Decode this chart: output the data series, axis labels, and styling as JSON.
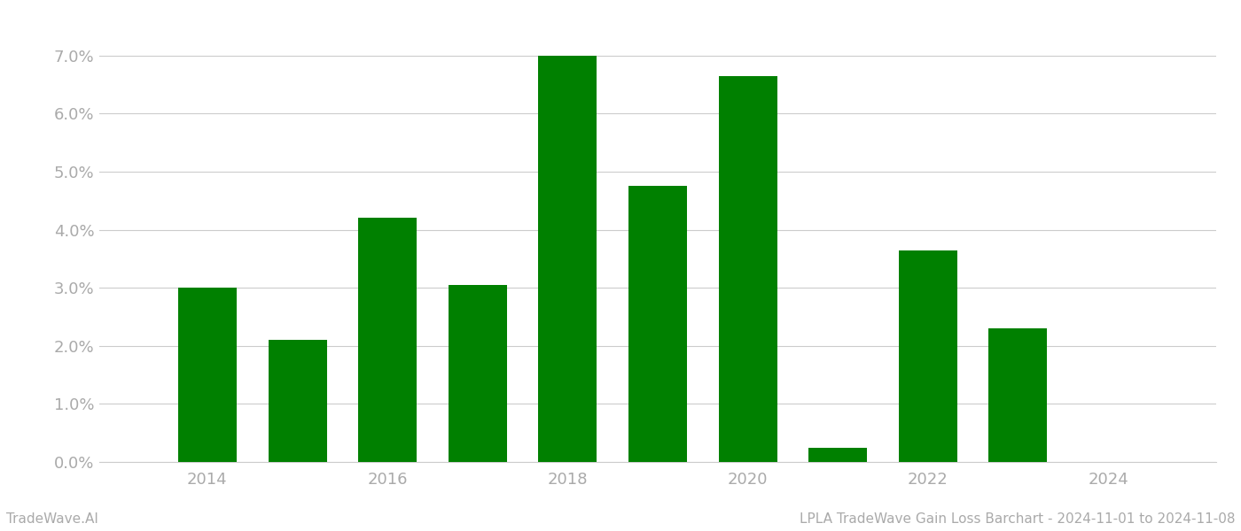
{
  "years": [
    2014,
    2015,
    2016,
    2017,
    2018,
    2019,
    2020,
    2021,
    2022,
    2023
  ],
  "values": [
    0.03,
    0.021,
    0.042,
    0.0305,
    0.07,
    0.0475,
    0.0665,
    0.0025,
    0.0365,
    0.023
  ],
  "bar_color": "#008000",
  "background_color": "#ffffff",
  "ylim": [
    0,
    0.075
  ],
  "yticks": [
    0.0,
    0.01,
    0.02,
    0.03,
    0.04,
    0.05,
    0.06,
    0.07
  ],
  "xticks": [
    2014,
    2016,
    2018,
    2020,
    2022,
    2024
  ],
  "xlim_left": 2012.8,
  "xlim_right": 2025.2,
  "xlabel": "",
  "ylabel": "",
  "footer_left": "TradeWave.AI",
  "footer_right": "LPLA TradeWave Gain Loss Barchart - 2024-11-01 to 2024-11-08",
  "grid_color": "#cccccc",
  "bar_width": 0.65,
  "tick_label_color": "#aaaaaa",
  "footer_fontsize": 11,
  "axis_fontsize": 13
}
